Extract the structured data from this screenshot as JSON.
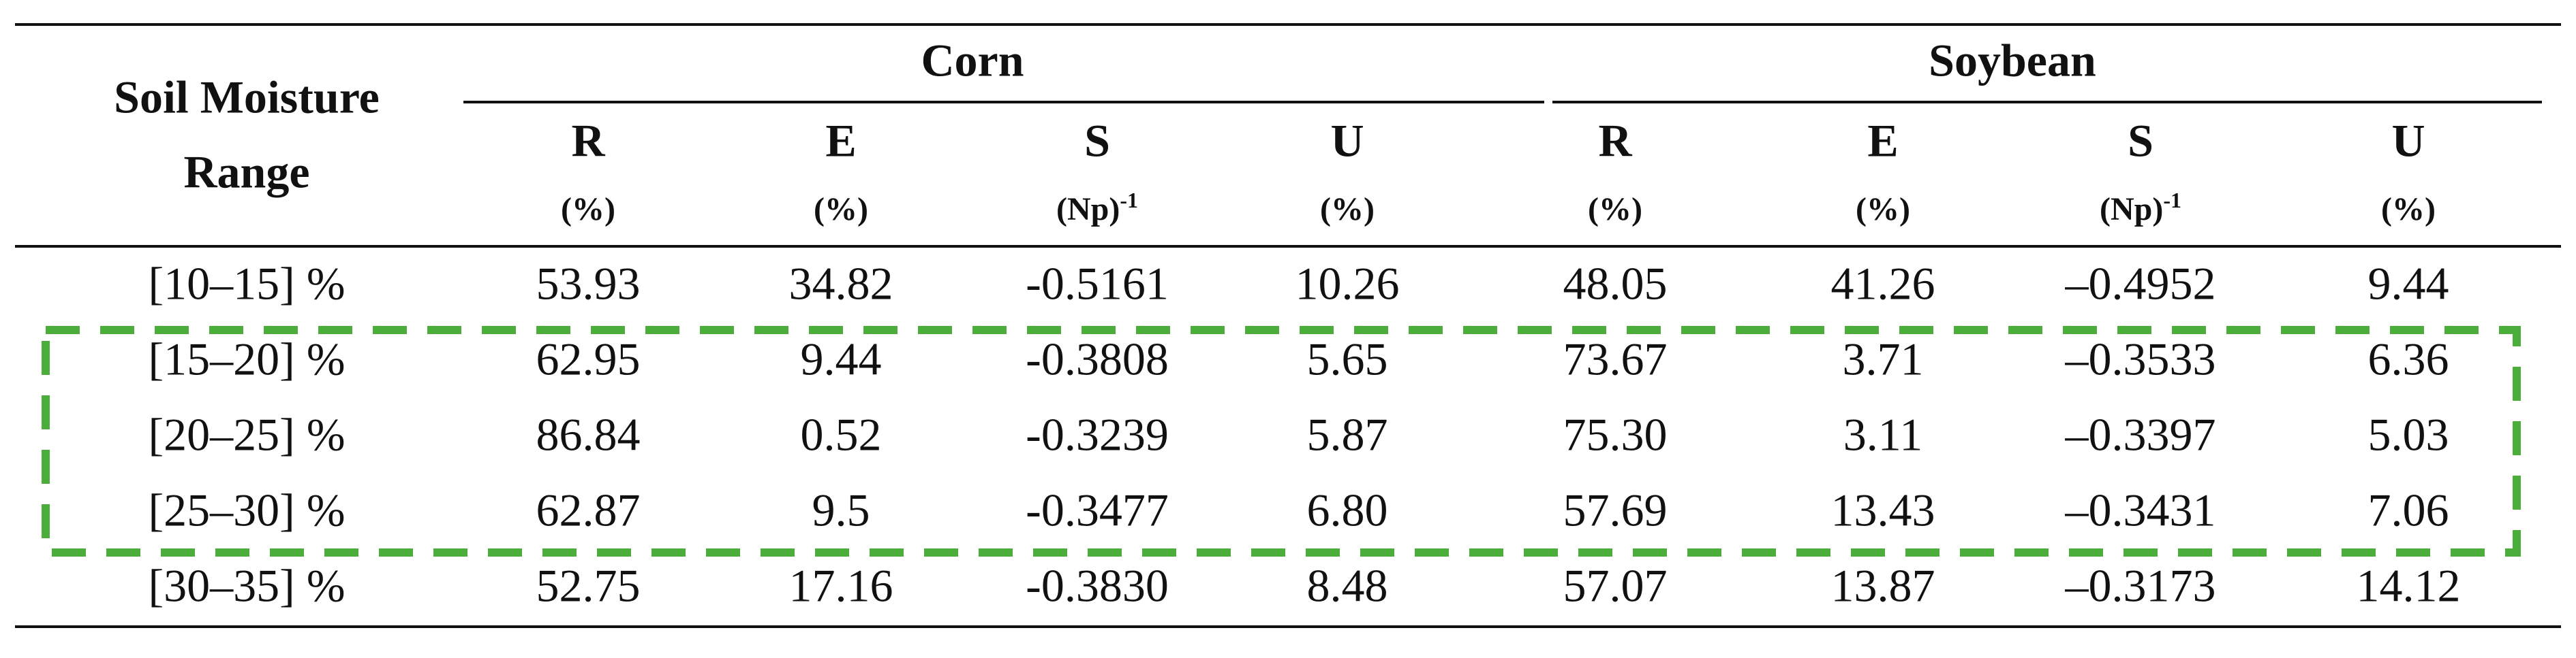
{
  "table": {
    "row_header": [
      "Soil Moisture",
      "Range"
    ],
    "groups": [
      "Corn",
      "Soybean"
    ],
    "columns": [
      {
        "name": "R",
        "unit": "(%)"
      },
      {
        "name": "E",
        "unit": "(%)"
      },
      {
        "name": "S",
        "unit": "(Np)",
        "sup": "-1"
      },
      {
        "name": "U",
        "unit": "(%)"
      },
      {
        "name": "R",
        "unit": "(%)"
      },
      {
        "name": "E",
        "unit": "(%)"
      },
      {
        "name": "S",
        "unit": "(Np)",
        "sup": "-1"
      },
      {
        "name": "U",
        "unit": "(%)"
      }
    ],
    "rows": [
      [
        "[10–15] %",
        "53.93",
        "34.82",
        "-0.5161",
        "10.26",
        "48.05",
        "41.26",
        "–0.4952",
        "9.44"
      ],
      [
        "[15–20] %",
        "62.95",
        "9.44",
        "-0.3808",
        "5.65",
        "73.67",
        "3.71",
        "–0.3533",
        "6.36"
      ],
      [
        "[20–25] %",
        "86.84",
        "0.52",
        "-0.3239",
        "5.87",
        "75.30",
        "3.11",
        "–0.3397",
        "5.03"
      ],
      [
        "[25–30] %",
        "62.87",
        "9.5",
        "-0.3477",
        "6.80",
        "57.69",
        "13.43",
        "–0.3431",
        "7.06"
      ],
      [
        "[30–35] %",
        "52.75",
        "17.16",
        "-0.3830",
        "8.48",
        "57.07",
        "13.87",
        "–0.3173",
        "14.12"
      ]
    ]
  }
}
